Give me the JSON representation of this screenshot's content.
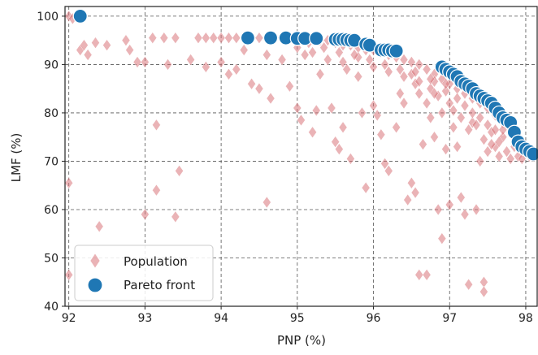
{
  "chart_data": {
    "type": "scatter",
    "xlabel": "PNP (%)",
    "ylabel": "LMF (%)",
    "xlim": [
      91.95,
      98.15
    ],
    "ylim": [
      40,
      102
    ],
    "xticks": [
      92,
      93,
      94,
      95,
      96,
      97,
      98
    ],
    "yticks": [
      40,
      50,
      60,
      70,
      80,
      90,
      100
    ],
    "grid": true,
    "grid_style": "dashed",
    "legend_position": "bottom-left",
    "colors": {
      "population": "#d9747a",
      "pareto": "#1f77b4",
      "grid": "#555555",
      "frame": "#222222"
    },
    "series": [
      {
        "name": "Population",
        "marker": "diamond",
        "points": [
          [
            92.0,
            100.0
          ],
          [
            92.05,
            99.5
          ],
          [
            92.15,
            93.0
          ],
          [
            92.2,
            94.0
          ],
          [
            92.25,
            92.0
          ],
          [
            92.35,
            94.5
          ],
          [
            92.5,
            94.0
          ],
          [
            92.75,
            95.0
          ],
          [
            92.8,
            93.0
          ],
          [
            92.9,
            90.5
          ],
          [
            93.0,
            90.5
          ],
          [
            93.1,
            95.5
          ],
          [
            93.25,
            95.5
          ],
          [
            93.3,
            90.0
          ],
          [
            93.4,
            95.5
          ],
          [
            93.6,
            91.0
          ],
          [
            93.8,
            89.5
          ],
          [
            92.0,
            65.5
          ],
          [
            92.0,
            46.5
          ],
          [
            92.4,
            56.5
          ],
          [
            93.0,
            59.0
          ],
          [
            93.15,
            64.0
          ],
          [
            93.15,
            77.5
          ],
          [
            93.4,
            58.5
          ],
          [
            93.45,
            68.0
          ],
          [
            93.7,
            95.5
          ],
          [
            93.8,
            95.5
          ],
          [
            93.9,
            95.5
          ],
          [
            94.0,
            95.5
          ],
          [
            94.1,
            95.5
          ],
          [
            94.2,
            95.5
          ],
          [
            94.3,
            95.5
          ],
          [
            94.4,
            95.5
          ],
          [
            94.5,
            95.5
          ],
          [
            94.6,
            95.5
          ],
          [
            94.7,
            95.5
          ],
          [
            94.8,
            95.5
          ],
          [
            94.9,
            95.5
          ],
          [
            95.0,
            95.5
          ],
          [
            95.1,
            95.5
          ],
          [
            95.2,
            95.5
          ],
          [
            95.3,
            95.0
          ],
          [
            95.4,
            95.0
          ],
          [
            95.5,
            94.5
          ],
          [
            95.6,
            94.0
          ],
          [
            95.7,
            94.0
          ],
          [
            95.8,
            93.5
          ],
          [
            95.9,
            93.0
          ],
          [
            96.0,
            93.0
          ],
          [
            96.1,
            92.5
          ],
          [
            96.2,
            92.0
          ],
          [
            96.3,
            91.5
          ],
          [
            96.4,
            91.0
          ],
          [
            96.5,
            90.5
          ],
          [
            96.6,
            90.0
          ],
          [
            96.7,
            89.0
          ],
          [
            96.8,
            88.0
          ],
          [
            96.9,
            87.0
          ],
          [
            97.0,
            86.0
          ],
          [
            97.1,
            85.0
          ],
          [
            97.2,
            84.0
          ],
          [
            97.3,
            83.0
          ],
          [
            97.4,
            82.0
          ],
          [
            97.5,
            81.0
          ],
          [
            97.6,
            79.5
          ],
          [
            97.7,
            78.0
          ],
          [
            97.8,
            76.0
          ],
          [
            97.9,
            74.0
          ],
          [
            98.0,
            72.0
          ],
          [
            98.05,
            71.0
          ],
          [
            94.0,
            90.5
          ],
          [
            94.1,
            88.0
          ],
          [
            94.2,
            89.0
          ],
          [
            94.3,
            93.0
          ],
          [
            94.4,
            86.0
          ],
          [
            94.5,
            85.0
          ],
          [
            94.6,
            92.0
          ],
          [
            94.65,
            83.0
          ],
          [
            94.8,
            91.0
          ],
          [
            94.9,
            85.5
          ],
          [
            95.0,
            81.0
          ],
          [
            95.05,
            78.5
          ],
          [
            95.1,
            92.0
          ],
          [
            95.2,
            76.0
          ],
          [
            95.25,
            80.5
          ],
          [
            95.3,
            88.0
          ],
          [
            95.45,
            81.0
          ],
          [
            95.5,
            74.0
          ],
          [
            95.55,
            72.5
          ],
          [
            95.6,
            77.0
          ],
          [
            95.65,
            89.0
          ],
          [
            95.7,
            70.5
          ],
          [
            95.8,
            87.5
          ],
          [
            95.85,
            80.0
          ],
          [
            95.9,
            64.5
          ],
          [
            96.0,
            81.5
          ],
          [
            96.05,
            79.5
          ],
          [
            96.1,
            75.5
          ],
          [
            96.15,
            69.5
          ],
          [
            96.2,
            68.0
          ],
          [
            96.3,
            77.0
          ],
          [
            96.35,
            84.0
          ],
          [
            96.4,
            82.0
          ],
          [
            96.45,
            62.0
          ],
          [
            96.5,
            65.5
          ],
          [
            96.55,
            63.5
          ],
          [
            96.6,
            46.5
          ],
          [
            96.65,
            73.5
          ],
          [
            96.7,
            46.5
          ],
          [
            96.75,
            79.0
          ],
          [
            96.8,
            75.0
          ],
          [
            96.85,
            60.0
          ],
          [
            96.9,
            54.0
          ],
          [
            96.95,
            72.5
          ],
          [
            97.0,
            61.0
          ],
          [
            97.05,
            77.0
          ],
          [
            97.1,
            73.0
          ],
          [
            97.15,
            62.5
          ],
          [
            97.2,
            59.0
          ],
          [
            97.25,
            44.5
          ],
          [
            97.3,
            78.0
          ],
          [
            97.35,
            60.0
          ],
          [
            97.4,
            70.0
          ],
          [
            97.45,
            45.0
          ],
          [
            97.45,
            43.0
          ],
          [
            97.5,
            72.0
          ],
          [
            97.55,
            76.0
          ],
          [
            97.6,
            73.0
          ],
          [
            97.65,
            71.0
          ],
          [
            97.7,
            75.0
          ],
          [
            97.75,
            72.0
          ],
          [
            97.8,
            70.5
          ],
          [
            97.85,
            73.0
          ],
          [
            97.9,
            71.0
          ],
          [
            97.95,
            70.5
          ],
          [
            94.6,
            61.5
          ],
          [
            96.5,
            88.0
          ],
          [
            96.55,
            86.0
          ],
          [
            96.6,
            84.0
          ],
          [
            96.7,
            82.0
          ],
          [
            96.75,
            85.0
          ],
          [
            96.8,
            86.5
          ],
          [
            96.85,
            83.5
          ],
          [
            96.9,
            80.0
          ],
          [
            96.95,
            84.5
          ],
          [
            97.0,
            82.0
          ],
          [
            97.05,
            80.5
          ],
          [
            97.1,
            83.0
          ],
          [
            97.15,
            79.0
          ],
          [
            97.2,
            81.5
          ],
          [
            97.25,
            76.5
          ],
          [
            97.3,
            80.0
          ],
          [
            97.35,
            77.5
          ],
          [
            97.4,
            79.0
          ],
          [
            97.45,
            74.5
          ],
          [
            97.5,
            77.5
          ],
          [
            97.55,
            73.5
          ],
          [
            97.6,
            76.5
          ],
          [
            97.65,
            74.0
          ],
          [
            97.7,
            76.5
          ],
          [
            95.0,
            93.5
          ],
          [
            95.2,
            92.5
          ],
          [
            95.4,
            91.0
          ],
          [
            95.6,
            90.5
          ],
          [
            95.8,
            91.5
          ],
          [
            96.0,
            89.5
          ],
          [
            96.2,
            88.5
          ],
          [
            96.4,
            87.5
          ],
          [
            96.6,
            86.5
          ],
          [
            96.8,
            84.0
          ],
          [
            95.15,
            94.5
          ],
          [
            95.35,
            93.5
          ],
          [
            95.55,
            92.5
          ],
          [
            95.75,
            92.0
          ],
          [
            95.95,
            91.0
          ],
          [
            96.15,
            90.0
          ],
          [
            96.35,
            89.0
          ],
          [
            96.55,
            88.5
          ],
          [
            96.75,
            87.0
          ],
          [
            96.95,
            86.0
          ]
        ]
      },
      {
        "name": "Pareto front",
        "marker": "circle",
        "points": [
          [
            92.15,
            100.0
          ],
          [
            94.35,
            95.5
          ],
          [
            94.65,
            95.5
          ],
          [
            94.85,
            95.5
          ],
          [
            95.0,
            95.4
          ],
          [
            95.1,
            95.4
          ],
          [
            95.25,
            95.4
          ],
          [
            95.5,
            95.2
          ],
          [
            95.55,
            95.2
          ],
          [
            95.6,
            95.2
          ],
          [
            95.65,
            95.1
          ],
          [
            95.7,
            95.0
          ],
          [
            95.75,
            95.0
          ],
          [
            95.9,
            94.2
          ],
          [
            95.95,
            94.0
          ],
          [
            96.1,
            93.0
          ],
          [
            96.15,
            93.0
          ],
          [
            96.2,
            93.0
          ],
          [
            96.25,
            92.8
          ],
          [
            96.3,
            92.8
          ],
          [
            96.9,
            89.5
          ],
          [
            96.95,
            89.0
          ],
          [
            97.0,
            88.5
          ],
          [
            97.05,
            88.0
          ],
          [
            97.1,
            87.5
          ],
          [
            97.15,
            86.5
          ],
          [
            97.2,
            86.0
          ],
          [
            97.25,
            85.5
          ],
          [
            97.3,
            85.0
          ],
          [
            97.35,
            84.0
          ],
          [
            97.4,
            83.5
          ],
          [
            97.45,
            83.0
          ],
          [
            97.5,
            82.5
          ],
          [
            97.55,
            82.0
          ],
          [
            97.6,
            81.0
          ],
          [
            97.65,
            80.0
          ],
          [
            97.7,
            79.0
          ],
          [
            97.75,
            78.5
          ],
          [
            97.8,
            78.0
          ],
          [
            97.85,
            76.0
          ],
          [
            97.9,
            74.0
          ],
          [
            97.95,
            73.0
          ],
          [
            98.0,
            72.5
          ],
          [
            98.05,
            72.0
          ],
          [
            98.1,
            71.5
          ]
        ]
      }
    ]
  }
}
